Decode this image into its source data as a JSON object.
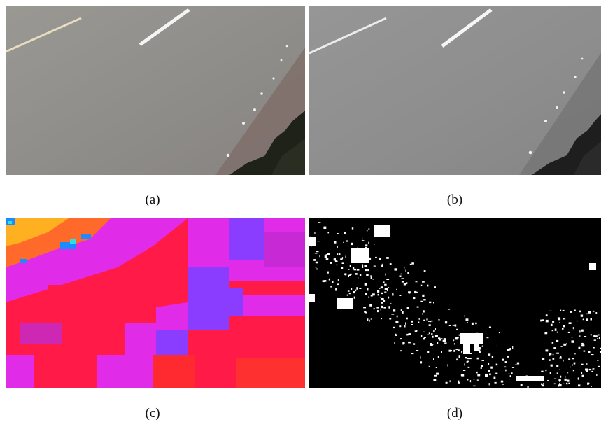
{
  "figure": {
    "panels": [
      {
        "id": "a",
        "caption": "(a)",
        "content": "color-road-frame"
      },
      {
        "id": "b",
        "caption": "(b)",
        "content": "grayscale-road-frame"
      },
      {
        "id": "c",
        "caption": "(c)",
        "content": "false-color-map"
      },
      {
        "id": "d",
        "caption": "(d)",
        "content": "binary-detection-mask"
      }
    ]
  },
  "colors": {
    "road_gray": "#8f8f8f",
    "map_red": "#ff1a48",
    "map_magenta": "#e02ce8",
    "map_violet": "#8a3cff",
    "mask_white": "#ffffff",
    "mask_black": "#000000"
  }
}
